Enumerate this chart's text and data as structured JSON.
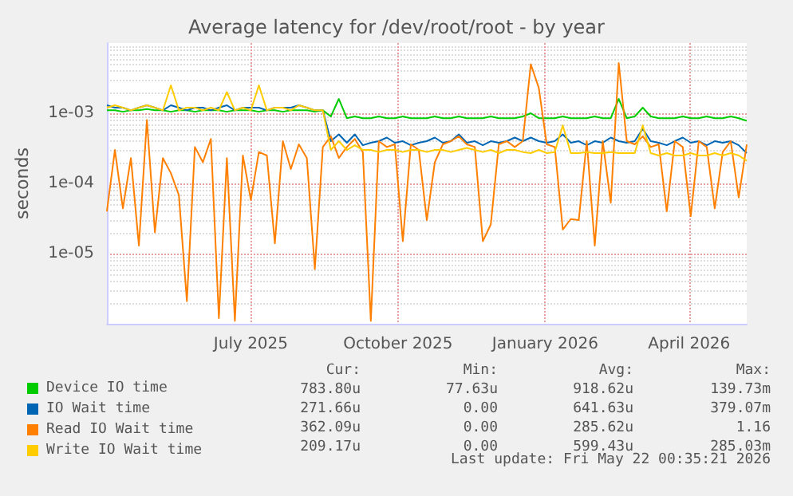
{
  "chart_data": {
    "type": "line",
    "title": "Average latency for /dev/root/root - by year",
    "ylabel": "seconds",
    "x": [
      "2025-04-17",
      "2025-04-22",
      "2025-04-27",
      "2025-05-02",
      "2025-05-07",
      "2025-05-12",
      "2025-05-17",
      "2025-05-22",
      "2025-05-27",
      "2025-06-01",
      "2025-06-06",
      "2025-06-11",
      "2025-06-16",
      "2025-06-21",
      "2025-06-26",
      "2025-07-01",
      "2025-07-06",
      "2025-07-11",
      "2025-07-16",
      "2025-07-21",
      "2025-07-26",
      "2025-07-31",
      "2025-08-05",
      "2025-08-10",
      "2025-08-15",
      "2025-08-20",
      "2025-08-25",
      "2025-08-30",
      "2025-09-04",
      "2025-09-09",
      "2025-09-14",
      "2025-09-19",
      "2025-09-24",
      "2025-09-29",
      "2025-10-04",
      "2025-10-09",
      "2025-10-14",
      "2025-10-19",
      "2025-10-24",
      "2025-10-29",
      "2025-11-03",
      "2025-11-08",
      "2025-11-13",
      "2025-11-18",
      "2025-11-23",
      "2025-11-28",
      "2025-12-03",
      "2025-12-08",
      "2025-12-13",
      "2025-12-18",
      "2025-12-23",
      "2025-12-28",
      "2026-01-02",
      "2026-01-07",
      "2026-01-12",
      "2026-01-17",
      "2026-01-22",
      "2026-01-27",
      "2026-02-01",
      "2026-02-06",
      "2026-02-11",
      "2026-02-16",
      "2026-02-21",
      "2026-02-26",
      "2026-03-03",
      "2026-03-08",
      "2026-03-13",
      "2026-03-18",
      "2026-03-23",
      "2026-03-28",
      "2026-04-02",
      "2026-04-07",
      "2026-04-12",
      "2026-04-17",
      "2026-04-22",
      "2026-04-27",
      "2026-05-02",
      "2026-05-07",
      "2026-05-12",
      "2026-05-17",
      "2026-05-22"
    ],
    "series": [
      {
        "name": "Device IO time",
        "color": "#00cc00",
        "values": [
          0.0011,
          0.0011,
          0.00105,
          0.0011,
          0.0011,
          0.00115,
          0.0011,
          0.0011,
          0.00105,
          0.0011,
          0.0011,
          0.00105,
          0.0011,
          0.0011,
          0.0011,
          0.00105,
          0.0011,
          0.0011,
          0.0011,
          0.00105,
          0.0011,
          0.0011,
          0.00105,
          0.0011,
          0.0011,
          0.0011,
          0.00105,
          0.0011,
          0.0009,
          0.0016,
          0.00085,
          0.0009,
          0.00085,
          0.00085,
          0.0009,
          0.00085,
          0.00085,
          0.0009,
          0.00085,
          0.00085,
          0.00085,
          0.0009,
          0.00085,
          0.00085,
          0.0009,
          0.00085,
          0.00085,
          0.00085,
          0.0009,
          0.00085,
          0.00085,
          0.00085,
          0.0009,
          0.001,
          0.00085,
          0.00085,
          0.00085,
          0.0009,
          0.00085,
          0.00085,
          0.00085,
          0.0009,
          0.00085,
          0.00085,
          0.0016,
          0.00085,
          0.0009,
          0.0012,
          0.0009,
          0.00085,
          0.00085,
          0.00085,
          0.0009,
          0.00085,
          0.00085,
          0.0009,
          0.00085,
          0.00085,
          0.0009,
          0.00085,
          0.00078
        ]
      },
      {
        "name": "IO Wait time",
        "color": "#0066b3",
        "values": [
          0.0013,
          0.0012,
          0.0012,
          0.0011,
          0.0012,
          0.0013,
          0.0012,
          0.0011,
          0.0013,
          0.0012,
          0.0011,
          0.0012,
          0.0012,
          0.0011,
          0.0012,
          0.0013,
          0.0011,
          0.0012,
          0.0012,
          0.0012,
          0.0011,
          0.0012,
          0.0012,
          0.0012,
          0.0013,
          0.0012,
          0.0011,
          0.0011,
          0.0004,
          0.0005,
          0.00038,
          0.0005,
          0.00035,
          0.00038,
          0.0004,
          0.00045,
          0.00038,
          0.0004,
          0.00035,
          0.00038,
          0.0004,
          0.00045,
          0.00038,
          0.0004,
          0.0005,
          0.00038,
          0.0004,
          0.00035,
          0.0004,
          0.00038,
          0.0004,
          0.00045,
          0.0004,
          0.00045,
          0.0004,
          0.00038,
          0.0004,
          0.0005,
          0.00038,
          0.0004,
          0.00035,
          0.0004,
          0.00038,
          0.00045,
          0.0004,
          0.00038,
          0.0004,
          0.0006,
          0.0004,
          0.00038,
          0.00035,
          0.0004,
          0.00045,
          0.00038,
          0.0004,
          0.00035,
          0.0004,
          0.00038,
          0.0004,
          0.00035,
          0.00027
        ]
      },
      {
        "name": "Read IO Wait time",
        "color": "#ff8000",
        "values": [
          4e-05,
          0.0003,
          4.4e-05,
          0.00023,
          1.3e-05,
          0.0008,
          2e-05,
          0.00023,
          0.00014,
          6.8e-05,
          2.1e-06,
          0.00033,
          0.0002,
          0.00043,
          1.2e-06,
          0.00023,
          1.1e-06,
          0.00025,
          5.8e-05,
          0.00028,
          0.00025,
          1.4e-05,
          0.0004,
          0.00016,
          0.00036,
          0.00023,
          6e-06,
          0.00033,
          0.00047,
          0.00023,
          0.00033,
          0.00043,
          0.00028,
          1.1e-06,
          0.0004,
          0.00033,
          0.00036,
          1.5e-05,
          0.00036,
          0.0003,
          3e-05,
          0.0002,
          0.00036,
          0.0004,
          0.00047,
          0.00036,
          0.00033,
          1.5e-05,
          2.6e-05,
          0.00036,
          0.0004,
          0.00033,
          0.0004,
          0.005,
          0.0023,
          0.00036,
          0.00033,
          2.2e-05,
          3.1e-05,
          3e-05,
          0.0004,
          1.3e-05,
          0.0004,
          5.3e-05,
          0.0052,
          0.0004,
          0.00036,
          0.00047,
          0.00033,
          0.00036,
          4e-05,
          0.0004,
          0.00033,
          3.4e-05,
          0.0004,
          0.00033,
          4.4e-05,
          0.00028,
          0.0004,
          6.3e-05,
          0.00036
        ]
      },
      {
        "name": "Write IO Wait time",
        "color": "#ffcc00",
        "values": [
          0.0012,
          0.0013,
          0.0012,
          0.0011,
          0.0012,
          0.0013,
          0.0012,
          0.0011,
          0.0025,
          0.0011,
          0.0012,
          0.0012,
          0.0011,
          0.0012,
          0.0011,
          0.002,
          0.0011,
          0.0012,
          0.0011,
          0.0025,
          0.0011,
          0.0012,
          0.0012,
          0.0011,
          0.0013,
          0.0012,
          0.0011,
          0.0011,
          0.0003,
          0.0004,
          0.0003,
          0.00035,
          0.0003,
          0.0003,
          0.00028,
          0.0003,
          0.0003,
          0.00028,
          0.0003,
          0.0003,
          0.00028,
          0.0003,
          0.0003,
          0.00028,
          0.0003,
          0.00032,
          0.0003,
          0.00028,
          0.0003,
          0.00027,
          0.0003,
          0.0003,
          0.00028,
          0.00027,
          0.0003,
          0.00027,
          0.00028,
          0.00067,
          0.00027,
          0.00027,
          0.00028,
          0.00027,
          0.00027,
          0.00028,
          0.00027,
          0.00027,
          0.00027,
          0.00067,
          0.00027,
          0.00025,
          0.00027,
          0.00025,
          0.00025,
          0.00027,
          0.00025,
          0.00025,
          0.00027,
          0.00025,
          0.00027,
          0.00025,
          0.00021
        ]
      }
    ],
    "log": true,
    "ylim": [
      1e-06,
      0.01
    ],
    "yticks": [
      {
        "value": 1e-05,
        "label": "1e-05"
      },
      {
        "value": 0.0001,
        "label": "1e-04"
      },
      {
        "value": 0.001,
        "label": "1e-03"
      }
    ],
    "xlim": [
      "2025-04-17",
      "2026-05-22"
    ],
    "xticks": [
      {
        "value": "2025-07-16",
        "label": "July 2025"
      },
      {
        "value": "2025-10-16",
        "label": "October 2025"
      },
      {
        "value": "2026-01-16",
        "label": "January 2026"
      },
      {
        "value": "2026-04-16",
        "label": "April 2026"
      }
    ],
    "grid": true,
    "legend": "bottom",
    "marker": "none",
    "line_style": "solid",
    "annotations": [
      "Cur:",
      "Min:",
      "Avg:",
      "Max:",
      "783.80u",
      "77.63u",
      "918.62u",
      "139.73m",
      "271.66u",
      "0.00",
      "641.63u",
      "379.07m",
      "362.09u",
      "0.00",
      "285.62u",
      "1.16",
      "209.17u",
      "0.00",
      "599.43u",
      "285.03m",
      "Last update: Fri May 22 00:35:21 2026"
    ]
  }
}
